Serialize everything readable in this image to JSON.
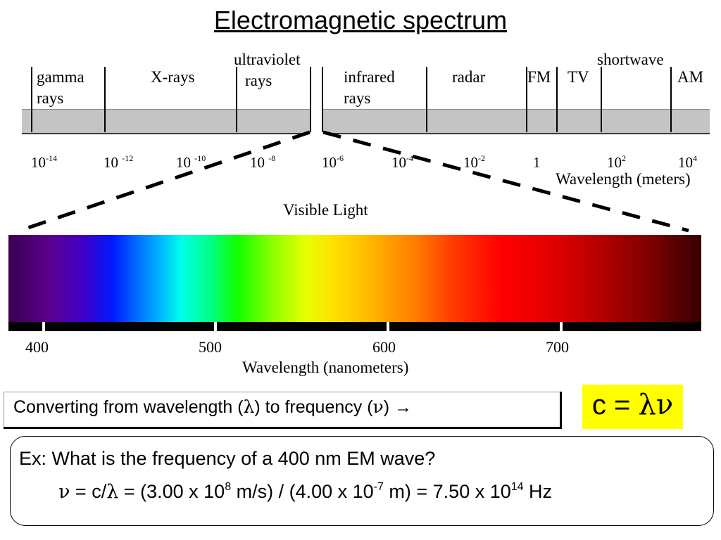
{
  "title": "Electromagnetic spectrum",
  "em_regions": [
    {
      "key": "gamma",
      "line1": "gamma",
      "line2": "rays"
    },
    {
      "key": "xrays",
      "line1": "X-rays"
    },
    {
      "key": "uv",
      "line1": "ultraviolet",
      "line2": "rays"
    },
    {
      "key": "ir",
      "line1": "infrared",
      "line2": "rays"
    },
    {
      "key": "radar",
      "line1": "radar"
    },
    {
      "key": "fm",
      "line1": "FM"
    },
    {
      "key": "tv",
      "line1": "TV"
    },
    {
      "key": "shortwave",
      "line1": "shortwave"
    },
    {
      "key": "am",
      "line1": "AM"
    }
  ],
  "wavelength_ticks": [
    {
      "base": "10",
      "exp": "-14"
    },
    {
      "base": "10 ",
      "exp": "-12"
    },
    {
      "base": "10 ",
      "exp": "-10"
    },
    {
      "base": "10 ",
      "exp": "-8"
    },
    {
      "base": "10",
      "exp": "-6"
    },
    {
      "base": "10",
      "exp": "-4"
    },
    {
      "base": "10",
      "exp": "-2"
    },
    {
      "base": "1",
      "exp": ""
    },
    {
      "base": "10",
      "exp": "2"
    },
    {
      "base": "10",
      "exp": "4"
    }
  ],
  "wavelength_axis_label": "Wavelength (meters)",
  "visible_light_label": "Visible Light",
  "nm_ticks": [
    "400",
    "500",
    "600",
    "700"
  ],
  "nm_axis_label": "Wavelength (nanometers)",
  "conversion": {
    "prefix": "Converting from wavelength (",
    "lambda": "λ",
    "middle": ") to frequency (",
    "nu": "ν",
    "suffix": ") ",
    "arrow": "→"
  },
  "formula": {
    "c": "c",
    "eq": " = ",
    "lambda": "λ",
    "nu": "ν",
    "bg_color": "#ffff00"
  },
  "example": {
    "question": "Ex: What is the frequency of a 400 nm EM wave?",
    "nu": "ν",
    "eq_part1": " = c/",
    "lambda": "λ",
    "eq_part2": "  =  (3.00 x 10",
    "exp1": "8",
    "eq_part3": " m/s) / (4.00 x 10",
    "exp2": "-7",
    "eq_part4": " m) = 7.50 x 10",
    "exp3": "14",
    "eq_part5": " Hz"
  }
}
